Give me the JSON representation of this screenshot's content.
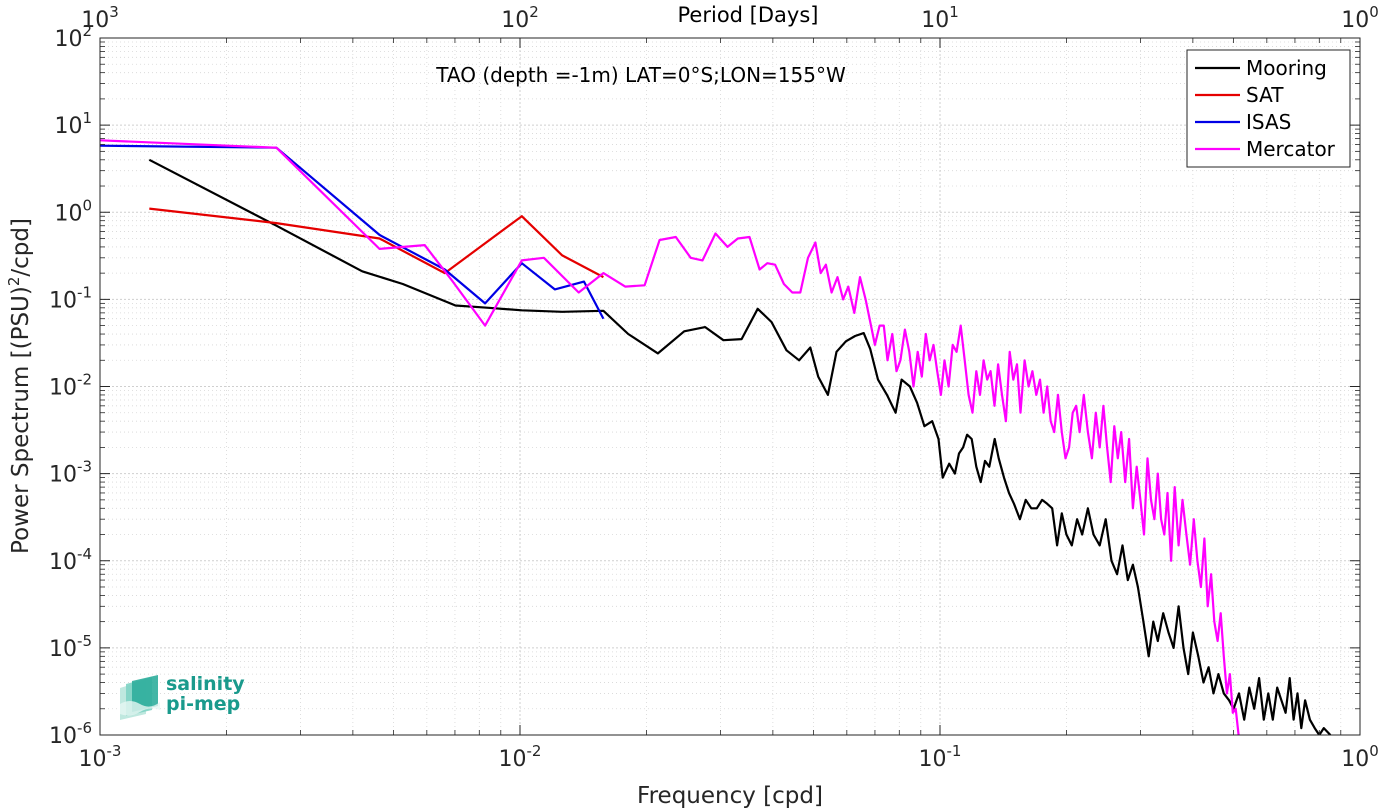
{
  "chart_data": {
    "type": "line",
    "annotation": "TAO (depth =-1m) LAT=0°S;LON=155°W",
    "xlabel": "Frequency [cpd]",
    "ylabel": "Power Spectrum [(PSU)^2/cpd]",
    "ylabel_parts": {
      "before": "Power Spectrum [(PSU)",
      "sup": "2",
      "after": "/cpd]"
    },
    "top_xlabel": "Period [Days]",
    "xscale": "log",
    "yscale": "log",
    "xlim": [
      0.001,
      1
    ],
    "ylim": [
      1e-06,
      100
    ],
    "grid": true,
    "legend_position": "top-right",
    "x_ticks": [
      {
        "value": 0.001,
        "base": "10",
        "exp": "-3"
      },
      {
        "value": 0.01,
        "base": "10",
        "exp": "-2"
      },
      {
        "value": 0.1,
        "base": "10",
        "exp": "-1"
      },
      {
        "value": 1,
        "base": "10",
        "exp": "0"
      }
    ],
    "y_ticks": [
      {
        "value": 1e-06,
        "base": "10",
        "exp": "-6"
      },
      {
        "value": 1e-05,
        "base": "10",
        "exp": "-5"
      },
      {
        "value": 0.0001,
        "base": "10",
        "exp": "-4"
      },
      {
        "value": 0.001,
        "base": "10",
        "exp": "-3"
      },
      {
        "value": 0.01,
        "base": "10",
        "exp": "-2"
      },
      {
        "value": 0.1,
        "base": "10",
        "exp": "-1"
      },
      {
        "value": 1,
        "base": "10",
        "exp": "0"
      },
      {
        "value": 10,
        "base": "10",
        "exp": "1"
      },
      {
        "value": 100,
        "base": "10",
        "exp": "2"
      }
    ],
    "top_ticks": [
      {
        "value": 0.001,
        "base": "10",
        "exp": "3"
      },
      {
        "value": 0.01,
        "base": "10",
        "exp": "2"
      },
      {
        "value": 0.1,
        "base": "10",
        "exp": "1"
      },
      {
        "value": 1,
        "base": "10",
        "exp": "0"
      }
    ],
    "series": [
      {
        "name": "Mooring",
        "color": "#000000",
        "points": [
          [
            0.00131,
            4.0
          ],
          [
            0.00263,
            0.7
          ],
          [
            0.00421,
            0.21
          ],
          [
            0.00526,
            0.15
          ],
          [
            0.00702,
            0.085
          ],
          [
            0.00842,
            0.08
          ],
          [
            0.0101,
            0.075
          ],
          [
            0.0126,
            0.072
          ],
          [
            0.0158,
            0.074
          ],
          [
            0.0181,
            0.04
          ],
          [
            0.0213,
            0.024
          ],
          [
            0.0246,
            0.043
          ],
          [
            0.0276,
            0.048
          ],
          [
            0.0305,
            0.034
          ],
          [
            0.0337,
            0.035
          ],
          [
            0.0368,
            0.078
          ],
          [
            0.0397,
            0.055
          ],
          [
            0.0431,
            0.026
          ],
          [
            0.0462,
            0.02
          ],
          [
            0.0491,
            0.028
          ],
          [
            0.0513,
            0.013
          ],
          [
            0.0541,
            0.008
          ],
          [
            0.0567,
            0.025
          ],
          [
            0.0597,
            0.033
          ],
          [
            0.0628,
            0.038
          ],
          [
            0.0658,
            0.041
          ],
          [
            0.0682,
            0.027
          ],
          [
            0.0712,
            0.012
          ],
          [
            0.0748,
            0.008
          ],
          [
            0.0784,
            0.005
          ],
          [
            0.081,
            0.012
          ],
          [
            0.0848,
            0.01
          ],
          [
            0.0882,
            0.0065
          ],
          [
            0.0918,
            0.0035
          ],
          [
            0.0958,
            0.004
          ],
          [
            0.0992,
            0.0025
          ],
          [
            0.1015,
            0.0009
          ],
          [
            0.1052,
            0.0013
          ],
          [
            0.1085,
            0.001
          ],
          [
            0.111,
            0.0017
          ],
          [
            0.1135,
            0.002
          ],
          [
            0.116,
            0.0028
          ],
          [
            0.119,
            0.0025
          ],
          [
            0.122,
            0.0012
          ],
          [
            0.125,
            0.0008
          ],
          [
            0.128,
            0.0014
          ],
          [
            0.131,
            0.0012
          ],
          [
            0.135,
            0.0025
          ],
          [
            0.138,
            0.0015
          ],
          [
            0.142,
            0.0009
          ],
          [
            0.146,
            0.0006
          ],
          [
            0.15,
            0.00045
          ],
          [
            0.155,
            0.0003
          ],
          [
            0.16,
            0.0005
          ],
          [
            0.165,
            0.0004
          ],
          [
            0.17,
            0.0004
          ],
          [
            0.175,
            0.0005
          ],
          [
            0.18,
            0.00045
          ],
          [
            0.185,
            0.0004
          ],
          [
            0.19,
            0.00015
          ],
          [
            0.195,
            0.00035
          ],
          [
            0.2,
            0.0002
          ],
          [
            0.206,
            0.00015
          ],
          [
            0.212,
            0.0003
          ],
          [
            0.218,
            0.0002
          ],
          [
            0.225,
            0.0004
          ],
          [
            0.232,
            0.0002
          ],
          [
            0.24,
            0.00015
          ],
          [
            0.248,
            0.0003
          ],
          [
            0.256,
            0.0001
          ],
          [
            0.264,
            7e-05
          ],
          [
            0.272,
            0.00015
          ],
          [
            0.28,
            6e-05
          ],
          [
            0.288,
            9e-05
          ],
          [
            0.296,
            5e-05
          ],
          [
            0.305,
            2e-05
          ],
          [
            0.314,
            8e-06
          ],
          [
            0.322,
            2e-05
          ],
          [
            0.33,
            1.2e-05
          ],
          [
            0.34,
            2.5e-05
          ],
          [
            0.35,
            1.5e-05
          ],
          [
            0.36,
            1e-05
          ],
          [
            0.37,
            3e-05
          ],
          [
            0.38,
            1e-05
          ],
          [
            0.39,
            5e-06
          ],
          [
            0.4,
            1.5e-05
          ],
          [
            0.412,
            8e-06
          ],
          [
            0.424,
            4e-06
          ],
          [
            0.436,
            6e-06
          ],
          [
            0.448,
            3e-06
          ],
          [
            0.46,
            5e-06
          ],
          [
            0.474,
            3e-06
          ],
          [
            0.488,
            2.5e-06
          ],
          [
            0.5,
            2e-06
          ],
          [
            0.515,
            3e-06
          ],
          [
            0.53,
            1.5e-06
          ],
          [
            0.545,
            3.5e-06
          ],
          [
            0.56,
            2e-06
          ],
          [
            0.575,
            4.5e-06
          ],
          [
            0.59,
            1.5e-06
          ],
          [
            0.605,
            3e-06
          ],
          [
            0.62,
            1.5e-06
          ],
          [
            0.635,
            3.5e-06
          ],
          [
            0.65,
            2.5e-06
          ],
          [
            0.665,
            1.8e-06
          ],
          [
            0.68,
            4.5e-06
          ],
          [
            0.695,
            1.5e-06
          ],
          [
            0.71,
            3e-06
          ],
          [
            0.725,
            1.2e-06
          ],
          [
            0.74,
            2.5e-06
          ],
          [
            0.76,
            1.5e-06
          ],
          [
            0.78,
            1.2e-06
          ],
          [
            0.8,
            1e-06
          ],
          [
            0.82,
            1.2e-06
          ],
          [
            0.85,
            1e-06
          ]
        ]
      },
      {
        "name": "SAT",
        "color": "#e50000",
        "points": [
          [
            0.00131,
            1.1
          ],
          [
            0.00263,
            0.75
          ],
          [
            0.00463,
            0.5
          ],
          [
            0.00662,
            0.2
          ],
          [
            0.0101,
            0.9
          ],
          [
            0.0126,
            0.32
          ],
          [
            0.0158,
            0.18
          ]
        ]
      },
      {
        "name": "ISAS",
        "color": "#0000e5",
        "points": [
          [
            0.001,
            5.8
          ],
          [
            0.00263,
            5.5
          ],
          [
            0.00463,
            0.55
          ],
          [
            0.00662,
            0.22
          ],
          [
            0.00826,
            0.09
          ],
          [
            0.0101,
            0.26
          ],
          [
            0.0121,
            0.13
          ],
          [
            0.0142,
            0.16
          ],
          [
            0.0158,
            0.06
          ]
        ]
      },
      {
        "name": "Mercator",
        "color": "#ff00ff",
        "points": [
          [
            0.001,
            6.7
          ],
          [
            0.00263,
            5.5
          ],
          [
            0.00463,
            0.38
          ],
          [
            0.00593,
            0.42
          ],
          [
            0.00692,
            0.16
          ],
          [
            0.00826,
            0.05
          ],
          [
            0.0101,
            0.28
          ],
          [
            0.0114,
            0.3
          ],
          [
            0.0138,
            0.12
          ],
          [
            0.0158,
            0.2
          ],
          [
            0.0178,
            0.14
          ],
          [
            0.0198,
            0.145
          ],
          [
            0.0215,
            0.48
          ],
          [
            0.0235,
            0.52
          ],
          [
            0.0255,
            0.3
          ],
          [
            0.0272,
            0.28
          ],
          [
            0.0292,
            0.57
          ],
          [
            0.0312,
            0.4
          ],
          [
            0.033,
            0.5
          ],
          [
            0.0352,
            0.52
          ],
          [
            0.0372,
            0.22
          ],
          [
            0.0388,
            0.26
          ],
          [
            0.0405,
            0.25
          ],
          [
            0.0425,
            0.15
          ],
          [
            0.0445,
            0.12
          ],
          [
            0.0465,
            0.12
          ],
          [
            0.0485,
            0.3
          ],
          [
            0.0505,
            0.45
          ],
          [
            0.052,
            0.2
          ],
          [
            0.0535,
            0.25
          ],
          [
            0.0552,
            0.12
          ],
          [
            0.057,
            0.18
          ],
          [
            0.0588,
            0.1
          ],
          [
            0.0605,
            0.14
          ],
          [
            0.0625,
            0.07
          ],
          [
            0.0645,
            0.18
          ],
          [
            0.0665,
            0.1
          ],
          [
            0.0685,
            0.05
          ],
          [
            0.07,
            0.03
          ],
          [
            0.0718,
            0.05
          ],
          [
            0.0735,
            0.05
          ],
          [
            0.075,
            0.02
          ],
          [
            0.077,
            0.04
          ],
          [
            0.0788,
            0.015
          ],
          [
            0.0805,
            0.02
          ],
          [
            0.0825,
            0.045
          ],
          [
            0.0845,
            0.025
          ],
          [
            0.0865,
            0.01
          ],
          [
            0.0885,
            0.025
          ],
          [
            0.0905,
            0.013
          ],
          [
            0.0925,
            0.04
          ],
          [
            0.0945,
            0.02
          ],
          [
            0.0965,
            0.03
          ],
          [
            0.0985,
            0.015
          ],
          [
            0.1005,
            0.008
          ],
          [
            0.1025,
            0.02
          ],
          [
            0.1048,
            0.01
          ],
          [
            0.1072,
            0.03
          ],
          [
            0.1095,
            0.025
          ],
          [
            0.112,
            0.05
          ],
          [
            0.1145,
            0.02
          ],
          [
            0.117,
            0.008
          ],
          [
            0.1195,
            0.005
          ],
          [
            0.122,
            0.015
          ],
          [
            0.1245,
            0.008
          ],
          [
            0.127,
            0.02
          ],
          [
            0.1295,
            0.012
          ],
          [
            0.132,
            0.015
          ],
          [
            0.1348,
            0.006
          ],
          [
            0.1375,
            0.018
          ],
          [
            0.1405,
            0.008
          ],
          [
            0.1435,
            0.004
          ],
          [
            0.1465,
            0.025
          ],
          [
            0.1495,
            0.012
          ],
          [
            0.1525,
            0.018
          ],
          [
            0.1555,
            0.005
          ],
          [
            0.159,
            0.02
          ],
          [
            0.1625,
            0.01
          ],
          [
            0.166,
            0.015
          ],
          [
            0.1695,
            0.008
          ],
          [
            0.173,
            0.012
          ],
          [
            0.1765,
            0.005
          ],
          [
            0.18,
            0.01
          ],
          [
            0.1835,
            0.004
          ],
          [
            0.187,
            0.003
          ],
          [
            0.191,
            0.008
          ],
          [
            0.195,
            0.003
          ],
          [
            0.199,
            0.0015
          ],
          [
            0.203,
            0.002
          ],
          [
            0.207,
            0.005
          ],
          [
            0.211,
            0.006
          ],
          [
            0.215,
            0.003
          ],
          [
            0.22,
            0.008
          ],
          [
            0.225,
            0.003
          ],
          [
            0.23,
            0.0015
          ],
          [
            0.235,
            0.005
          ],
          [
            0.24,
            0.002
          ],
          [
            0.245,
            0.006
          ],
          [
            0.25,
            0.002
          ],
          [
            0.255,
            0.0008
          ],
          [
            0.26,
            0.0035
          ],
          [
            0.265,
            0.0015
          ],
          [
            0.27,
            0.003
          ],
          [
            0.276,
            0.0008
          ],
          [
            0.282,
            0.0025
          ],
          [
            0.288,
            0.0004
          ],
          [
            0.294,
            0.0012
          ],
          [
            0.3,
            0.0005
          ],
          [
            0.306,
            0.0002
          ],
          [
            0.312,
            0.0015
          ],
          [
            0.318,
            0.0005
          ],
          [
            0.324,
            0.0003
          ],
          [
            0.33,
            0.001
          ],
          [
            0.336,
            0.0003
          ],
          [
            0.342,
            0.0002
          ],
          [
            0.348,
            0.0006
          ],
          [
            0.355,
            0.0001
          ],
          [
            0.362,
            0.0007
          ],
          [
            0.37,
            0.00015
          ],
          [
            0.378,
            0.0005
          ],
          [
            0.386,
            0.0002
          ],
          [
            0.394,
            9e-05
          ],
          [
            0.402,
            0.0003
          ],
          [
            0.41,
            0.0001
          ],
          [
            0.418,
            5e-05
          ],
          [
            0.426,
            0.00018
          ],
          [
            0.434,
            3e-05
          ],
          [
            0.442,
            7e-05
          ],
          [
            0.45,
            2e-05
          ],
          [
            0.458,
            1.2e-05
          ],
          [
            0.466,
            2.5e-05
          ],
          [
            0.474,
            8e-06
          ],
          [
            0.482,
            3e-06
          ],
          [
            0.49,
            5e-06
          ],
          [
            0.498,
            1.8e-06
          ],
          [
            0.506,
            2e-06
          ],
          [
            0.514,
            1e-06
          ]
        ]
      }
    ]
  }
}
